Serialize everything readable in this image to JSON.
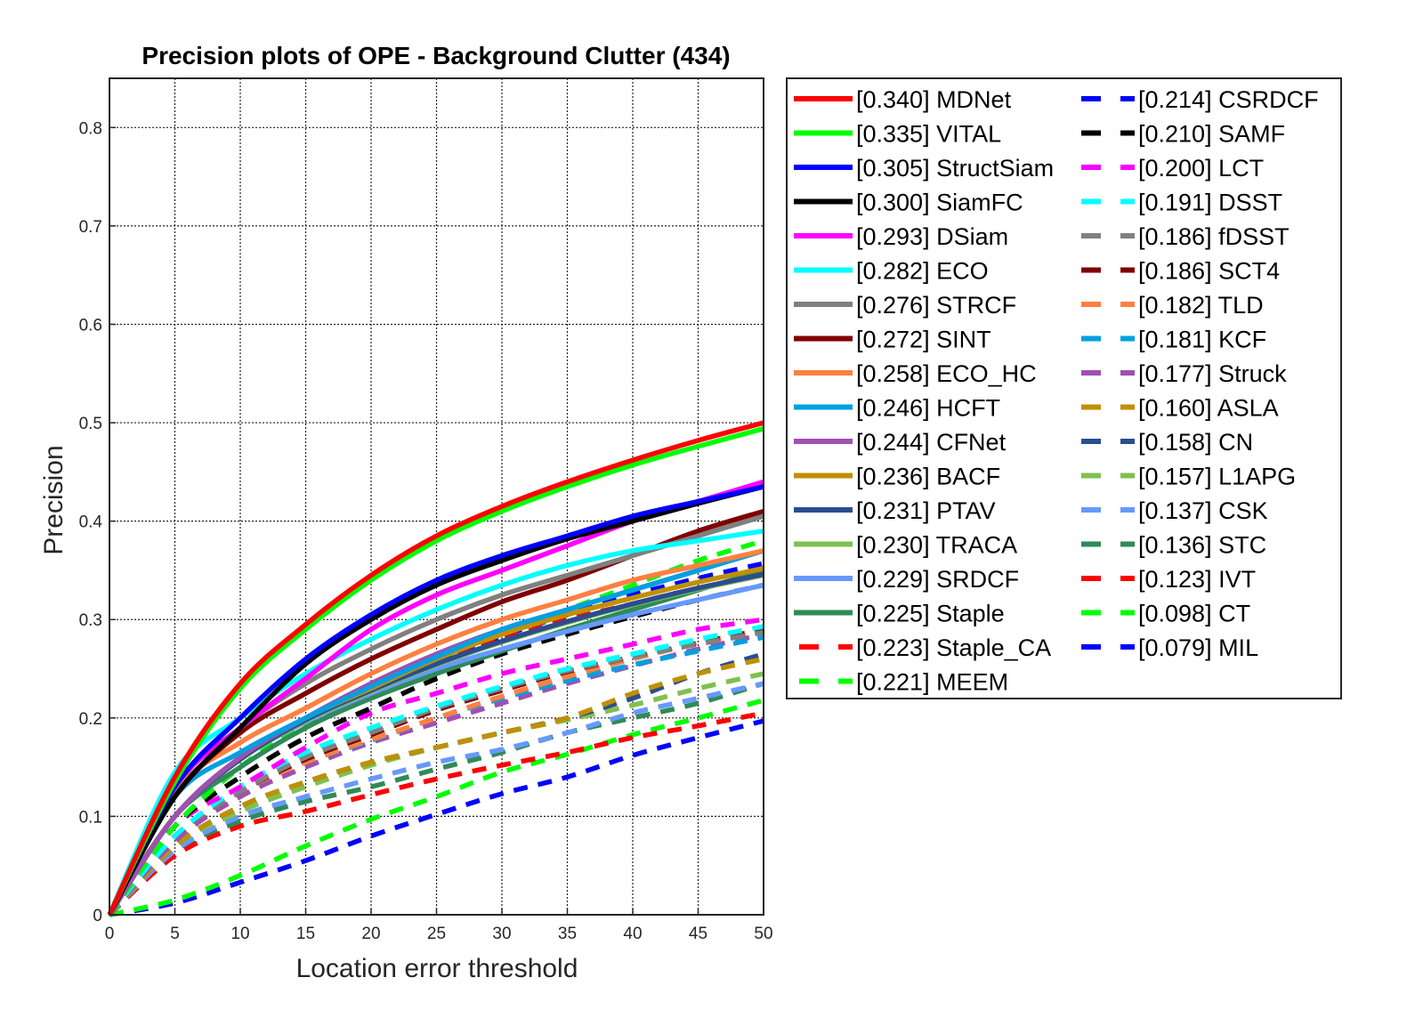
{
  "chart_data": {
    "type": "line",
    "title": "Precision plots of OPE - Background Clutter (434)",
    "xlabel": "Location error threshold",
    "ylabel": "Precision",
    "xlim": [
      0,
      50
    ],
    "ylim": [
      0,
      0.85
    ],
    "x_ticks": [
      "0",
      "5",
      "10",
      "15",
      "20",
      "25",
      "30",
      "35",
      "40",
      "45",
      "50"
    ],
    "y_ticks": [
      "0",
      "0.1",
      "0.2",
      "0.3",
      "0.4",
      "0.5",
      "0.6",
      "0.7",
      "0.8"
    ],
    "grid": true,
    "legend_position": "outside-right",
    "x": [
      0,
      5,
      10,
      15,
      20,
      25,
      30,
      35,
      40,
      45,
      50
    ],
    "series": [
      {
        "name": "[0.340] MDNet",
        "color": "#ff0000",
        "style": "solid",
        "values": [
          0,
          0.14,
          0.235,
          0.295,
          0.345,
          0.385,
          0.415,
          0.44,
          0.462,
          0.482,
          0.5
        ]
      },
      {
        "name": "[0.335] VITAL",
        "color": "#00ff00",
        "style": "solid",
        "values": [
          0,
          0.135,
          0.23,
          0.29,
          0.34,
          0.38,
          0.41,
          0.435,
          0.457,
          0.476,
          0.494
        ]
      },
      {
        "name": "[0.305] StructSiam",
        "color": "#0000ff",
        "style": "solid",
        "values": [
          0,
          0.13,
          0.2,
          0.26,
          0.305,
          0.34,
          0.365,
          0.385,
          0.405,
          0.42,
          0.435
        ]
      },
      {
        "name": "[0.300] SiamFC",
        "color": "#000000",
        "style": "solid",
        "values": [
          0,
          0.12,
          0.19,
          0.255,
          0.3,
          0.335,
          0.36,
          0.382,
          0.4,
          0.418,
          0.435
        ]
      },
      {
        "name": "[0.293] DSiam",
        "color": "#ff00ff",
        "style": "solid",
        "values": [
          0,
          0.13,
          0.19,
          0.24,
          0.29,
          0.325,
          0.35,
          0.375,
          0.4,
          0.42,
          0.44
        ]
      },
      {
        "name": "[0.282] ECO",
        "color": "#00ffff",
        "style": "solid",
        "values": [
          0,
          0.145,
          0.2,
          0.245,
          0.28,
          0.31,
          0.335,
          0.355,
          0.37,
          0.38,
          0.39
        ]
      },
      {
        "name": "[0.276] STRCF",
        "color": "#808080",
        "style": "solid",
        "values": [
          0,
          0.13,
          0.19,
          0.235,
          0.27,
          0.3,
          0.325,
          0.345,
          0.365,
          0.385,
          0.405
        ]
      },
      {
        "name": "[0.272] SINT",
        "color": "#800000",
        "style": "solid",
        "values": [
          0,
          0.12,
          0.185,
          0.225,
          0.26,
          0.29,
          0.318,
          0.34,
          0.365,
          0.39,
          0.41
        ]
      },
      {
        "name": "[0.258] ECO_HC",
        "color": "#ff8040",
        "style": "solid",
        "values": [
          0,
          0.125,
          0.175,
          0.21,
          0.245,
          0.275,
          0.3,
          0.32,
          0.34,
          0.355,
          0.37
        ]
      },
      {
        "name": "[0.246] HCFT",
        "color": "#00a0e0",
        "style": "solid",
        "values": [
          0,
          0.12,
          0.165,
          0.2,
          0.232,
          0.262,
          0.29,
          0.31,
          0.33,
          0.35,
          0.37
        ]
      },
      {
        "name": "[0.244] CFNet",
        "color": "#a050b0",
        "style": "solid",
        "values": [
          0,
          0.1,
          0.16,
          0.2,
          0.235,
          0.265,
          0.29,
          0.31,
          0.33,
          0.35,
          0.37
        ]
      },
      {
        "name": "[0.236] BACF",
        "color": "#c09000",
        "style": "solid",
        "values": [
          0,
          0.1,
          0.16,
          0.2,
          0.23,
          0.26,
          0.285,
          0.305,
          0.322,
          0.338,
          0.352
        ]
      },
      {
        "name": "[0.231] PTAV",
        "color": "#2a4d8f",
        "style": "solid",
        "values": [
          0,
          0.1,
          0.158,
          0.198,
          0.228,
          0.255,
          0.278,
          0.298,
          0.316,
          0.332,
          0.346
        ]
      },
      {
        "name": "[0.230] TRACA",
        "color": "#80c050",
        "style": "solid",
        "values": [
          0,
          0.1,
          0.158,
          0.197,
          0.227,
          0.254,
          0.277,
          0.297,
          0.315,
          0.331,
          0.345
        ]
      },
      {
        "name": "[0.229] SRDCF",
        "color": "#6699ff",
        "style": "solid",
        "values": [
          0,
          0.1,
          0.158,
          0.196,
          0.225,
          0.25,
          0.27,
          0.288,
          0.305,
          0.32,
          0.335
        ]
      },
      {
        "name": "[0.225] Staple",
        "color": "#2e8b57",
        "style": "solid",
        "values": [
          0,
          0.1,
          0.15,
          0.19,
          0.22,
          0.245,
          0.268,
          0.29,
          0.31,
          0.33,
          0.35
        ]
      },
      {
        "name": "[0.223] Staple_CA",
        "color": "#ff0000",
        "style": "dash",
        "values": [
          0,
          0.1,
          0.16,
          0.2,
          0.232,
          0.26,
          0.28,
          0.3,
          0.316,
          0.332,
          0.345
        ]
      },
      {
        "name": "[0.221] MEEM",
        "color": "#00ff00",
        "style": "dash",
        "values": [
          0,
          0.09,
          0.15,
          0.195,
          0.23,
          0.26,
          0.285,
          0.31,
          0.335,
          0.36,
          0.38
        ]
      },
      {
        "name": "[0.214] CSRDCF",
        "color": "#0000ff",
        "style": "dash",
        "values": [
          0,
          0.09,
          0.15,
          0.192,
          0.228,
          0.258,
          0.283,
          0.305,
          0.325,
          0.342,
          0.357
        ]
      },
      {
        "name": "[0.210] SAMF",
        "color": "#000000",
        "style": "dash",
        "values": [
          0,
          0.09,
          0.14,
          0.18,
          0.21,
          0.24,
          0.265,
          0.285,
          0.303,
          0.32,
          0.335
        ]
      },
      {
        "name": "[0.200] LCT",
        "color": "#ff00ff",
        "style": "dash",
        "values": [
          0,
          0.09,
          0.13,
          0.17,
          0.205,
          0.225,
          0.245,
          0.26,
          0.275,
          0.29,
          0.3
        ]
      },
      {
        "name": "[0.191] DSST",
        "color": "#00ffff",
        "style": "dash",
        "values": [
          0,
          0.08,
          0.13,
          0.165,
          0.19,
          0.212,
          0.232,
          0.25,
          0.265,
          0.28,
          0.293
        ]
      },
      {
        "name": "[0.186] fDSST",
        "color": "#808080",
        "style": "dash",
        "values": [
          0,
          0.08,
          0.125,
          0.16,
          0.185,
          0.21,
          0.23,
          0.248,
          0.262,
          0.275,
          0.287
        ]
      },
      {
        "name": "[0.186] SCT4",
        "color": "#800000",
        "style": "dash",
        "values": [
          0,
          0.08,
          0.125,
          0.158,
          0.183,
          0.208,
          0.228,
          0.247,
          0.262,
          0.276,
          0.29
        ]
      },
      {
        "name": "[0.182] TLD",
        "color": "#ff8040",
        "style": "dash",
        "values": [
          0,
          0.08,
          0.125,
          0.155,
          0.178,
          0.2,
          0.222,
          0.242,
          0.26,
          0.276,
          0.29
        ]
      },
      {
        "name": "[0.181] KCF",
        "color": "#00a0e0",
        "style": "dash",
        "values": [
          0,
          0.08,
          0.125,
          0.155,
          0.177,
          0.2,
          0.22,
          0.238,
          0.254,
          0.268,
          0.282
        ]
      },
      {
        "name": "[0.177] Struck",
        "color": "#a050b0",
        "style": "dash",
        "values": [
          0,
          0.075,
          0.12,
          0.15,
          0.175,
          0.195,
          0.215,
          0.235,
          0.253,
          0.27,
          0.285
        ]
      },
      {
        "name": "[0.160] ASLA",
        "color": "#c09000",
        "style": "dash",
        "values": [
          0,
          0.07,
          0.11,
          0.135,
          0.155,
          0.17,
          0.185,
          0.2,
          0.225,
          0.245,
          0.26
        ]
      },
      {
        "name": "[0.158] CN",
        "color": "#2a4d8f",
        "style": "dash",
        "values": [
          0,
          0.07,
          0.11,
          0.135,
          0.155,
          0.17,
          0.185,
          0.2,
          0.22,
          0.245,
          0.265
        ]
      },
      {
        "name": "[0.157] L1APG",
        "color": "#80c050",
        "style": "dash",
        "values": [
          0,
          0.07,
          0.105,
          0.13,
          0.152,
          0.17,
          0.185,
          0.198,
          0.213,
          0.23,
          0.245
        ]
      },
      {
        "name": "[0.137] CSK",
        "color": "#6699ff",
        "style": "dash",
        "values": [
          0,
          0.065,
          0.1,
          0.12,
          0.138,
          0.155,
          0.168,
          0.185,
          0.205,
          0.22,
          0.235
        ]
      },
      {
        "name": "[0.136] STC",
        "color": "#2e8b57",
        "style": "dash",
        "values": [
          0,
          0.065,
          0.095,
          0.115,
          0.13,
          0.148,
          0.165,
          0.185,
          0.2,
          0.215,
          0.235
        ]
      },
      {
        "name": "[0.123] IVT",
        "color": "#ff0000",
        "style": "dash",
        "values": [
          0,
          0.06,
          0.09,
          0.105,
          0.122,
          0.138,
          0.152,
          0.165,
          0.18,
          0.192,
          0.205
        ]
      },
      {
        "name": "[0.098] CT",
        "color": "#00ff00",
        "style": "dash",
        "values": [
          0,
          0.015,
          0.04,
          0.07,
          0.097,
          0.12,
          0.145,
          0.163,
          0.183,
          0.2,
          0.218
        ]
      },
      {
        "name": "[0.079] MIL",
        "color": "#0000ff",
        "style": "dash",
        "values": [
          0,
          0.012,
          0.033,
          0.055,
          0.08,
          0.102,
          0.123,
          0.14,
          0.162,
          0.18,
          0.197
        ]
      }
    ]
  }
}
